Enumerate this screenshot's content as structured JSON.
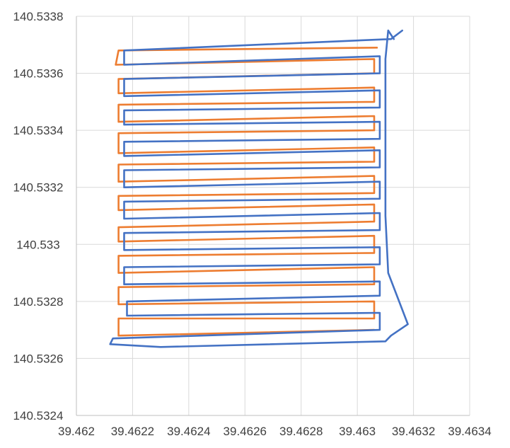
{
  "chart_data": {
    "type": "line",
    "title": "",
    "xlabel": "",
    "ylabel": "",
    "xlim": [
      39.462,
      39.4634
    ],
    "ylim": [
      140.5324,
      140.5338
    ],
    "x_ticks": [
      "39.462",
      "39.4622",
      "39.4624",
      "39.4626",
      "39.4628",
      "39.463",
      "39.4632",
      "39.4634"
    ],
    "y_ticks": [
      "140.5324",
      "140.5326",
      "140.5328",
      "140.533",
      "140.5332",
      "140.5334",
      "140.5336",
      "140.5338"
    ],
    "grid": true,
    "legend": "none",
    "series": [
      {
        "color": "#ED7D31",
        "points": [
          [
            39.46307,
            140.53369
          ],
          [
            39.46215,
            140.53368
          ],
          [
            39.46214,
            140.53363
          ],
          [
            39.46306,
            140.53365
          ],
          [
            39.46306,
            140.5336
          ],
          [
            39.46215,
            140.53358
          ],
          [
            39.46215,
            140.53353
          ],
          [
            39.46306,
            140.53355
          ],
          [
            39.46306,
            140.5335
          ],
          [
            39.46215,
            140.53349
          ],
          [
            39.46215,
            140.53343
          ],
          [
            39.46306,
            140.53345
          ],
          [
            39.46306,
            140.5334
          ],
          [
            39.46215,
            140.53339
          ],
          [
            39.46215,
            140.53332
          ],
          [
            39.46306,
            140.53334
          ],
          [
            39.46306,
            140.53329
          ],
          [
            39.46215,
            140.53328
          ],
          [
            39.46215,
            140.53322
          ],
          [
            39.46306,
            140.53324
          ],
          [
            39.46306,
            140.53318
          ],
          [
            39.46215,
            140.53317
          ],
          [
            39.46215,
            140.53312
          ],
          [
            39.46306,
            140.53314
          ],
          [
            39.46306,
            140.53308
          ],
          [
            39.46215,
            140.53306
          ],
          [
            39.46215,
            140.53301
          ],
          [
            39.46306,
            140.53303
          ],
          [
            39.46306,
            140.53297
          ],
          [
            39.46215,
            140.53296
          ],
          [
            39.46215,
            140.5329
          ],
          [
            39.46306,
            140.53292
          ],
          [
            39.46306,
            140.53286
          ],
          [
            39.46215,
            140.53285
          ],
          [
            39.46215,
            140.53279
          ],
          [
            39.46306,
            140.5328
          ],
          [
            39.46306,
            140.53274
          ],
          [
            39.46215,
            140.53274
          ],
          [
            39.46215,
            140.53268
          ],
          [
            39.46306,
            140.5327
          ]
        ]
      },
      {
        "color": "#4472C4",
        "points": [
          [
            39.46316,
            140.53375
          ],
          [
            39.46312,
            140.53372
          ],
          [
            39.46217,
            140.53368
          ],
          [
            39.46217,
            140.53363
          ],
          [
            39.46308,
            140.53366
          ],
          [
            39.46308,
            140.5336
          ],
          [
            39.46217,
            140.53358
          ],
          [
            39.46217,
            140.53352
          ],
          [
            39.46308,
            140.53354
          ],
          [
            39.46308,
            140.53348
          ],
          [
            39.46217,
            140.53347
          ],
          [
            39.46217,
            140.53342
          ],
          [
            39.46308,
            140.53343
          ],
          [
            39.46308,
            140.53337
          ],
          [
            39.46217,
            140.53336
          ],
          [
            39.46217,
            140.53331
          ],
          [
            39.46308,
            140.53333
          ],
          [
            39.46308,
            140.53327
          ],
          [
            39.46217,
            140.53326
          ],
          [
            39.46217,
            140.5332
          ],
          [
            39.46308,
            140.53322
          ],
          [
            39.46308,
            140.53316
          ],
          [
            39.46217,
            140.53315
          ],
          [
            39.46217,
            140.53309
          ],
          [
            39.46308,
            140.53311
          ],
          [
            39.46308,
            140.53305
          ],
          [
            39.46217,
            140.53304
          ],
          [
            39.46217,
            140.53298
          ],
          [
            39.46308,
            140.53299
          ],
          [
            39.46308,
            140.53293
          ],
          [
            39.46217,
            140.53292
          ],
          [
            39.46217,
            140.53286
          ],
          [
            39.46308,
            140.53287
          ],
          [
            39.46308,
            140.53282
          ],
          [
            39.46218,
            140.5328
          ],
          [
            39.46218,
            140.53275
          ],
          [
            39.46308,
            140.53276
          ],
          [
            39.46308,
            140.5327
          ],
          [
            39.46213,
            140.53267
          ],
          [
            39.46212,
            140.53265
          ],
          [
            39.4623,
            140.53264
          ],
          [
            39.4631,
            140.53266
          ],
          [
            39.46312,
            140.53268
          ],
          [
            39.46318,
            140.53272
          ],
          [
            39.46311,
            140.5329
          ],
          [
            39.4631,
            140.5331
          ],
          [
            39.4631,
            140.5333
          ],
          [
            39.4631,
            140.5335
          ],
          [
            39.4631,
            140.53365
          ],
          [
            39.46311,
            140.53375
          ],
          [
            39.46313,
            140.53372
          ]
        ]
      }
    ]
  }
}
